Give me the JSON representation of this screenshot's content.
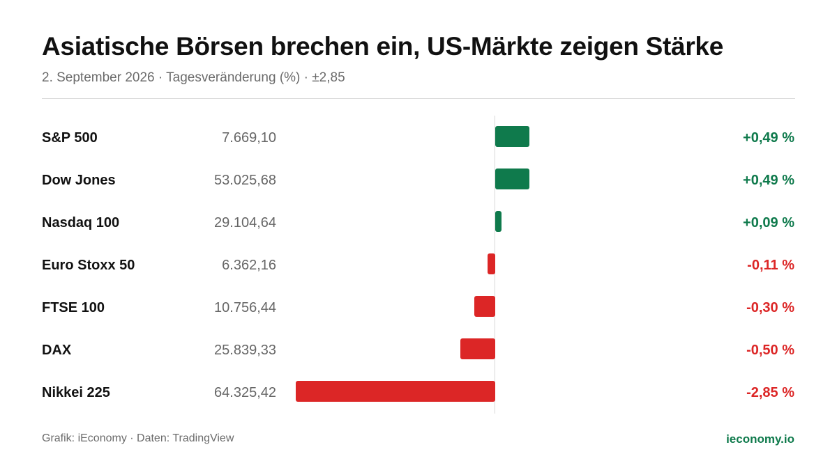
{
  "header": {
    "title": "Asiatische Börsen brechen ein, US-Märkte zeigen Stärke",
    "subtitle": "2. September 2026 · Tagesveränderung (%) · ±2,85"
  },
  "colors": {
    "positive": "#0f7a4c",
    "negative": "#dc2626",
    "axis": "#d9d9d9"
  },
  "chart_data": {
    "type": "bar",
    "orientation": "horizontal",
    "title": "Asiatische Börsen brechen ein, US-Märkte zeigen Stärke",
    "subtitle": "2. September 2026 · Tagesveränderung (%) · ±2,85",
    "xlim": [
      -2.85,
      2.85
    ],
    "categories": [
      "S&P 500",
      "Dow Jones",
      "Nasdaq 100",
      "Euro Stoxx 50",
      "FTSE 100",
      "DAX",
      "Nikkei 225"
    ],
    "values": [
      0.49,
      0.49,
      0.09,
      -0.11,
      -0.3,
      -0.5,
      -2.85
    ],
    "rows": [
      {
        "name": "S&P 500",
        "level": "7.669,10",
        "value": 0.49,
        "label": "+0,49 %"
      },
      {
        "name": "Dow Jones",
        "level": "53.025,68",
        "value": 0.49,
        "label": "+0,49 %"
      },
      {
        "name": "Nasdaq 100",
        "level": "29.104,64",
        "value": 0.09,
        "label": "+0,09 %"
      },
      {
        "name": "Euro Stoxx 50",
        "level": "6.362,16",
        "value": -0.11,
        "label": "-0,11 %"
      },
      {
        "name": "FTSE 100",
        "level": "10.756,44",
        "value": -0.3,
        "label": "-0,30 %"
      },
      {
        "name": "DAX",
        "level": "25.839,33",
        "value": -0.5,
        "label": "-0,50 %"
      },
      {
        "name": "Nikkei 225",
        "level": "64.325,42",
        "value": -2.85,
        "label": "-2,85 %"
      }
    ]
  },
  "footer": {
    "source": "Grafik: iEconomy · Daten: TradingView",
    "brand": "ieconomy.io"
  }
}
